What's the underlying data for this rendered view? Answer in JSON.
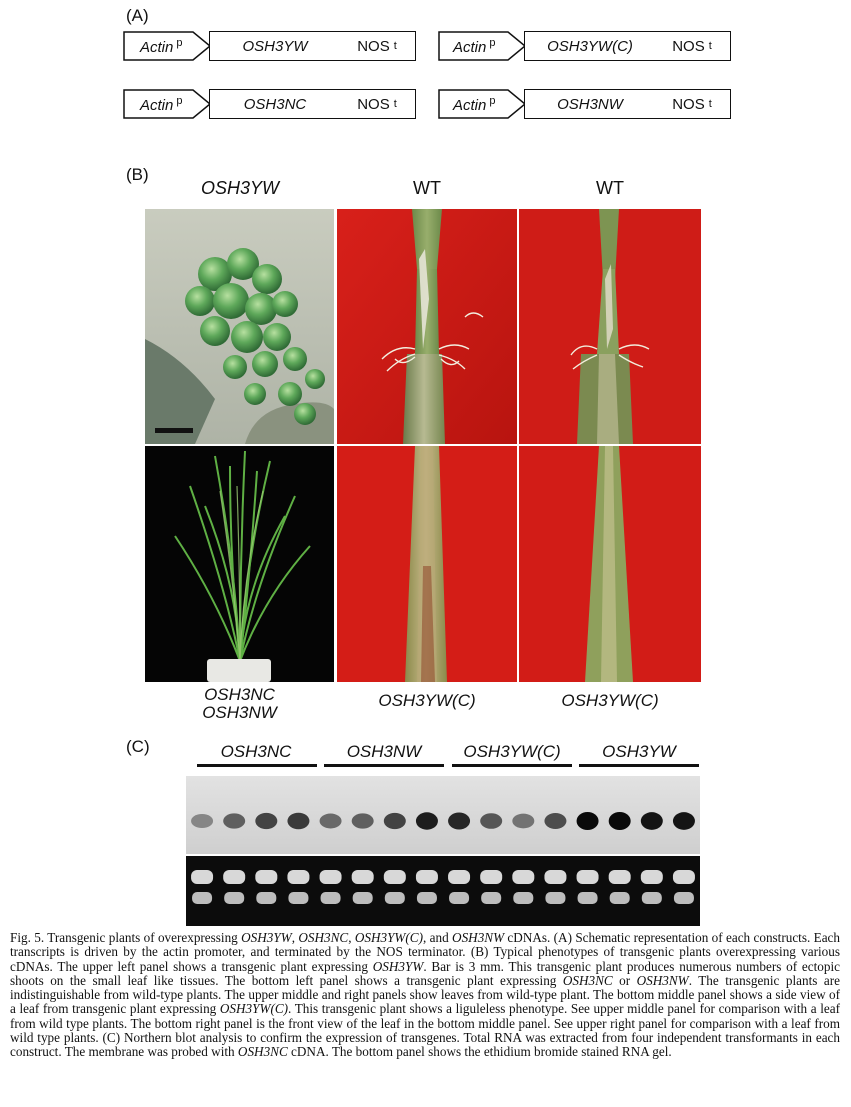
{
  "panel_a": {
    "label": "(A)",
    "constructs": [
      {
        "promoter": "Actin",
        "promoter_sup": "p",
        "gene": "OSH3YW",
        "terminator": "NOS",
        "terminator_sup": "t"
      },
      {
        "promoter": "Actin",
        "promoter_sup": "p",
        "gene": "OSH3YW(C)",
        "terminator": "NOS",
        "terminator_sup": "t"
      },
      {
        "promoter": "Actin",
        "promoter_sup": "p",
        "gene": "OSH3NC",
        "terminator": "NOS",
        "terminator_sup": "t"
      },
      {
        "promoter": "Actin",
        "promoter_sup": "p",
        "gene": "OSH3NW",
        "terminator": "NOS",
        "terminator_sup": "t"
      }
    ]
  },
  "panel_b": {
    "label": "(B)",
    "col_headers": [
      "OSH3YW",
      "WT",
      "WT"
    ],
    "bottom_labels": {
      "left_line1": "OSH3NC",
      "left_line2": "OSH3NW",
      "middle": "OSH3YW(C)",
      "right": "OSH3YW(C)"
    }
  },
  "panel_c": {
    "label": "(C)",
    "groups": [
      "OSH3NC",
      "OSH3NW",
      "OSH3YW(C)",
      "OSH3YW"
    ],
    "band_intensity": [
      0.35,
      0.55,
      0.7,
      0.75,
      0.5,
      0.55,
      0.7,
      0.9,
      0.85,
      0.6,
      0.45,
      0.65,
      1.0,
      1.0,
      0.95,
      0.95
    ]
  },
  "caption": {
    "fig_label": "Fig. 5.",
    "s1": "Transgenic plants of overexpressing ",
    "g1": "OSH3YW",
    "s2": ", ",
    "g2": "OSH3NC",
    "s3": ", ",
    "g3": "OSH3YW(C)",
    "s4": ", and ",
    "g4": "OSH3NW",
    "s5": " cDNAs. (A) Schematic representation of each constructs. Each transcripts is driven by the actin promoter, and terminated by the NOS terminator. (B) Typical phenotypes of transgenic plants overexpressing various cDNAs. The upper left panel shows a transgenic plant expressing ",
    "g5": "OSH3YW",
    "s6": ". Bar is 3 mm. This transgenic plant produces numerous numbers of ectopic shoots on the small leaf like tissues. The bottom left panel shows a transgenic plant expressing ",
    "g6": "OSH3NC",
    "s7": " or ",
    "g7": "OSH3NW",
    "s8": ". The transgenic plants are indistinguishable from wild-type plants. The upper middle and right panels show leaves from wild-type plant. The bottom middle panel shows a side view of a leaf from transgenic plant expressing ",
    "g8": "OSH3YW(C)",
    "s9": ". This transgenic plant shows a liguleless phenotype. See upper middle panel for comparison with a leaf from wild type plants. The bottom right panel is the front view of the leaf in the bottom middle panel. See upper right panel for comparison with a leaf from wild type plants. (C) Northern blot analysis to confirm the expression of transgenes. Total RNA was extracted from four independent transformants in each construct. The membrane was probed with ",
    "g9": "OSH3NC",
    "s10": " cDNA. The bottom panel shows the ethidium bromide stained RNA gel."
  }
}
